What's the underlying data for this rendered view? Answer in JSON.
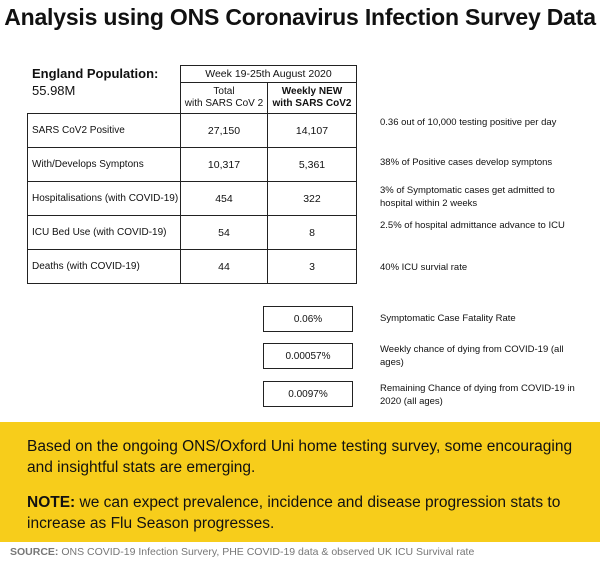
{
  "title": "Analysis using ONS Coronavirus Infection Survey Data",
  "population": {
    "label": "England Population:",
    "value": "55.98M"
  },
  "table": {
    "period": "Week 19-25th August 2020",
    "col1": [
      "Total",
      "with SARS CoV 2"
    ],
    "col2": [
      "Weekly NEW",
      "with SARS CoV2"
    ],
    "rows": [
      {
        "label": "SARS CoV2 Positive",
        "total": "27,150",
        "weekly": "14,107",
        "note": "0.36 out of 10,000 testing positive per day"
      },
      {
        "label": "With/Develops Symptons",
        "total": "10,317",
        "weekly": "5,361",
        "note": "38% of Positive cases develop symptons"
      },
      {
        "label": "Hospitalisations (with COVID-19)",
        "total": "454",
        "weekly": "322",
        "note": "3% of Symptomatic cases get admitted to hospital within 2 weeks"
      },
      {
        "label": "ICU Bed Use (with COVID-19)",
        "total": "54",
        "weekly": "8",
        "note": "2.5% of hospital admittance advance to ICU"
      },
      {
        "label": "Deaths (with COVID-19)",
        "total": "44",
        "weekly": "3",
        "note": "40% ICU survial rate"
      }
    ]
  },
  "rates": [
    {
      "value": "0.06%",
      "label": "Symptomatic Case Fatality Rate"
    },
    {
      "value": "0.00057%",
      "label": "Weekly chance of dying from COVID-19 (all ages)"
    },
    {
      "value": "0.0097%",
      "label": "Remaining Chance of dying from COVID-19 in 2020 (all ages)"
    }
  ],
  "banner": {
    "p1": "Based on the ongoing ONS/Oxford Uni home testing survey, some encouraging and insightful stats are emerging.",
    "note_label": "NOTE:",
    "note_text": " we can expect prevalence, incidence and disease progression stats to increase as Flu Season progresses.",
    "color": "#f7cd1b"
  },
  "source": {
    "label": "SOURCE:",
    "text": " ONS COVID-19 Infection Survery, PHE COVID-19 data & observed UK ICU Survival rate"
  }
}
